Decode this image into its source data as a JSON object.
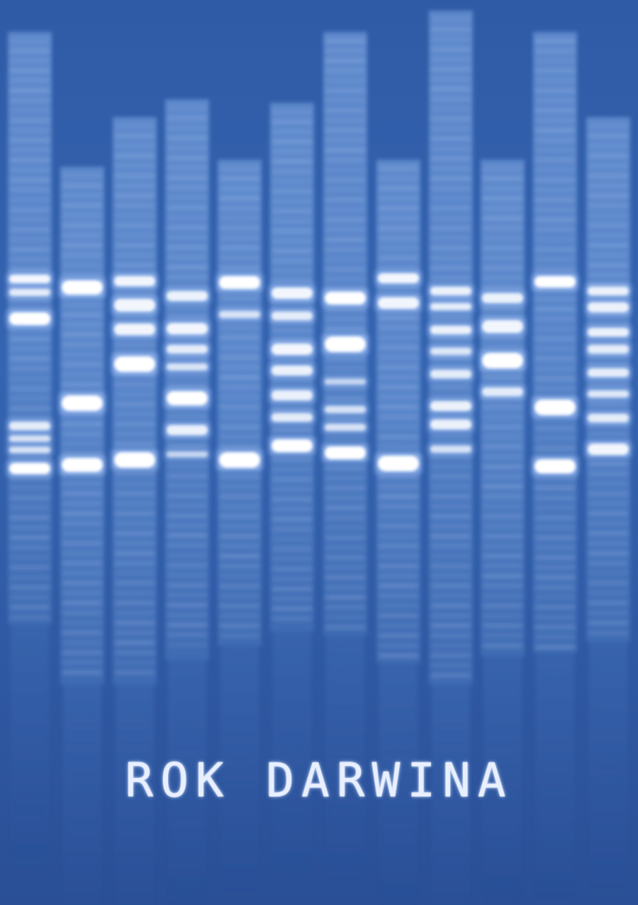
{
  "poster": {
    "title": "ROK DARWINA"
  },
  "colors": {
    "background": "#2f5aa6",
    "lane": "#5a86cc",
    "band": "#ffffff",
    "text": "#e8efff"
  }
}
